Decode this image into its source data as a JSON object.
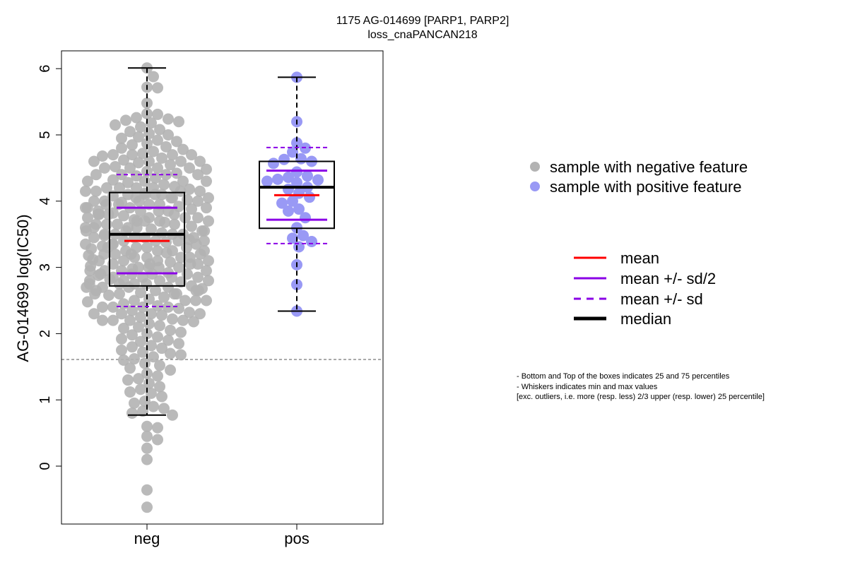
{
  "chart_data": {
    "type": "boxplot",
    "title": "1175 AG-014699 [PARP1, PARP2]",
    "subtitle": "loss_cnaPANCAN218",
    "xlabel": "",
    "ylabel": "AG-014699 log(IC50)",
    "categories": [
      "neg",
      "pos"
    ],
    "ylim": [
      -0.8,
      6.25
    ],
    "yticks": [
      0,
      1,
      2,
      3,
      4,
      5,
      6
    ],
    "grid": false,
    "reference_line": 1.61,
    "colors": {
      "neg": "#b3b3b3",
      "pos": "#9999f5",
      "mean": "#ff0000",
      "sd": "#8a00e6",
      "median": "#000000"
    },
    "boxes": [
      {
        "name": "neg",
        "min": 0.77,
        "q1": 2.72,
        "median": 3.5,
        "q3": 4.13,
        "max": 6.01,
        "mean": 3.4,
        "mean_minus_half_sd": 2.91,
        "mean_plus_half_sd": 3.9,
        "mean_minus_sd": 2.41,
        "mean_plus_sd": 4.4,
        "points": [
          6.01,
          5.88,
          5.72,
          5.71,
          5.48,
          5.32,
          5.31,
          5.26,
          5.24,
          5.22,
          5.2,
          5.18,
          5.15,
          5.12,
          5.08,
          5.05,
          5.02,
          5.0,
          4.97,
          4.95,
          4.92,
          4.9,
          4.87,
          4.85,
          4.82,
          4.8,
          4.78,
          4.75,
          4.72,
          4.7,
          4.68,
          4.65,
          4.62,
          4.6,
          4.58,
          4.55,
          4.52,
          4.5,
          4.48,
          4.45,
          4.42,
          4.4,
          4.38,
          4.35,
          4.32,
          4.3,
          4.28,
          4.25,
          4.22,
          4.2,
          4.18,
          4.15,
          4.12,
          4.1,
          4.08,
          4.05,
          4.02,
          4.0,
          3.98,
          3.95,
          3.92,
          3.9,
          3.88,
          3.85,
          3.82,
          3.8,
          3.78,
          3.75,
          3.72,
          3.7,
          3.68,
          3.65,
          3.62,
          3.6,
          3.58,
          3.55,
          3.52,
          3.5,
          3.48,
          3.45,
          3.42,
          3.4,
          3.38,
          3.35,
          3.32,
          3.3,
          3.28,
          3.25,
          3.22,
          3.2,
          3.18,
          3.15,
          3.12,
          3.1,
          3.08,
          3.05,
          3.02,
          3.0,
          2.98,
          2.95,
          2.92,
          2.9,
          2.88,
          2.85,
          2.82,
          2.8,
          2.78,
          2.75,
          2.72,
          2.7,
          2.68,
          2.65,
          2.62,
          2.6,
          2.58,
          2.55,
          2.52,
          2.5,
          2.48,
          2.45,
          2.42,
          2.4,
          2.38,
          2.35,
          2.32,
          2.3,
          2.28,
          2.25,
          2.22,
          2.2,
          2.18,
          2.15,
          2.12,
          2.1,
          2.08,
          2.05,
          2.02,
          2.0,
          1.98,
          1.95,
          1.92,
          1.9,
          1.88,
          1.85,
          1.82,
          1.8,
          1.78,
          1.75,
          1.72,
          1.7,
          1.68,
          1.65,
          1.62,
          1.6,
          1.55,
          1.52,
          1.48,
          1.45,
          1.4,
          1.36,
          1.32,
          1.3,
          1.25,
          1.2,
          1.16,
          1.12,
          1.1,
          1.05,
          0.98,
          0.95,
          0.9,
          0.87,
          0.83,
          0.8,
          0.77,
          0.6,
          0.58,
          0.45,
          0.4,
          0.27,
          0.1,
          -0.36,
          -0.62
        ],
        "dense_band": [
          4.2,
          4.15,
          4.1,
          4.05,
          4.0,
          3.95,
          3.9,
          3.85,
          3.8,
          3.75,
          3.7,
          3.65,
          3.6,
          3.55,
          3.5,
          3.45,
          3.4,
          3.35,
          3.3,
          3.25,
          3.2,
          3.15,
          3.1,
          3.05,
          3.0,
          2.95,
          2.9,
          2.85,
          2.8,
          2.75,
          2.7,
          2.65,
          2.6,
          4.3,
          4.4,
          4.5,
          4.6,
          4.7,
          2.5,
          2.4,
          2.3,
          2.2
        ]
      },
      {
        "name": "pos",
        "min": 2.34,
        "q1": 3.59,
        "median": 4.21,
        "q3": 4.6,
        "max": 5.87,
        "mean": 4.09,
        "mean_minus_half_sd": 3.72,
        "mean_plus_half_sd": 4.46,
        "mean_minus_sd": 3.36,
        "mean_plus_sd": 4.81,
        "points": [
          5.87,
          5.2,
          4.88,
          4.8,
          4.74,
          4.64,
          4.63,
          4.6,
          4.57,
          4.44,
          4.38,
          4.36,
          4.33,
          4.32,
          4.3,
          4.28,
          4.21,
          4.18,
          4.12,
          4.06,
          4.0,
          3.97,
          3.88,
          3.85,
          3.75,
          3.6,
          3.48,
          3.44,
          3.39,
          3.31,
          3.04,
          2.74,
          2.34
        ]
      }
    ],
    "legend_points": [
      {
        "label": "sample with negative feature",
        "color": "#b3b3b3"
      },
      {
        "label": "sample with positive feature",
        "color": "#9999f5"
      }
    ],
    "legend_lines": [
      {
        "label": "mean",
        "color": "#ff0000",
        "style": "solid",
        "weight": "normal"
      },
      {
        "label": "mean +/- sd/2",
        "color": "#8a00e6",
        "style": "solid",
        "weight": "normal"
      },
      {
        "label": "mean +/- sd",
        "color": "#8a00e6",
        "style": "dashed",
        "weight": "normal"
      },
      {
        "label": "median",
        "color": "#000000",
        "style": "solid",
        "weight": "bold"
      }
    ],
    "notes": [
      "- Bottom and Top of the boxes indicates 25 and 75 percentiles",
      "- Whiskers indicates min and max values",
      "[exc. outliers, i.e. more (resp. less) 2/3 upper (resp. lower) 25 percentile]"
    ]
  }
}
